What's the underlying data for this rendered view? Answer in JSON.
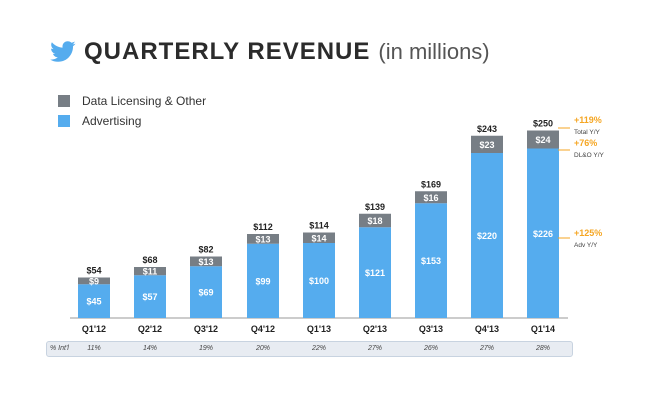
{
  "header": {
    "title": "QUARTERLY REVENUE",
    "subtitle": "(in millions)",
    "logo_icon": "twitter-bird-icon"
  },
  "legend": [
    {
      "label": "Data Licensing & Other",
      "color": "#777e85"
    },
    {
      "label": "Advertising",
      "color": "#55acee"
    }
  ],
  "chart_data": {
    "type": "bar",
    "stacked": true,
    "title": "QUARTERLY REVENUE",
    "subtitle": "(in millions)",
    "categories": [
      "Q1'12",
      "Q2'12",
      "Q3'12",
      "Q4'12",
      "Q1'13",
      "Q2'13",
      "Q3'13",
      "Q4'13",
      "Q1'14"
    ],
    "series": [
      {
        "name": "Advertising",
        "values": [
          45,
          57,
          69,
          99,
          100,
          121,
          153,
          220,
          226
        ],
        "color": "#55acee"
      },
      {
        "name": "Data Licensing & Other",
        "values": [
          9,
          11,
          13,
          13,
          14,
          18,
          16,
          23,
          24
        ],
        "color": "#777e85"
      }
    ],
    "totals": [
      54,
      68,
      82,
      112,
      114,
      139,
      169,
      243,
      250
    ],
    "value_labels": {
      "advertising": [
        "$45",
        "$57",
        "$69",
        "$99",
        "$100",
        "$121",
        "$153",
        "$220",
        "$226"
      ],
      "dlo": [
        "$9",
        "$11",
        "$13",
        "$13",
        "$14",
        "$18",
        "$16",
        "$23",
        "$24"
      ],
      "totals": [
        "$54",
        "$68",
        "$82",
        "$112",
        "$114",
        "$139",
        "$169",
        "$243",
        "$250"
      ]
    },
    "ylim": [
      0,
      250
    ],
    "grid": false,
    "legend_position": "top-left",
    "annotations": [
      {
        "pct": "+119%",
        "label": "Total Y/Y"
      },
      {
        "pct": "+76%",
        "label": "DL&O Y/Y"
      },
      {
        "pct": "+125%",
        "label": "Adv Y/Y"
      }
    ],
    "annotation_color": "#f5a623",
    "pct_intl_label": "% Int'l",
    "pct_intl": [
      "11%",
      "14%",
      "19%",
      "20%",
      "22%",
      "27%",
      "26%",
      "27%",
      "28%"
    ]
  }
}
